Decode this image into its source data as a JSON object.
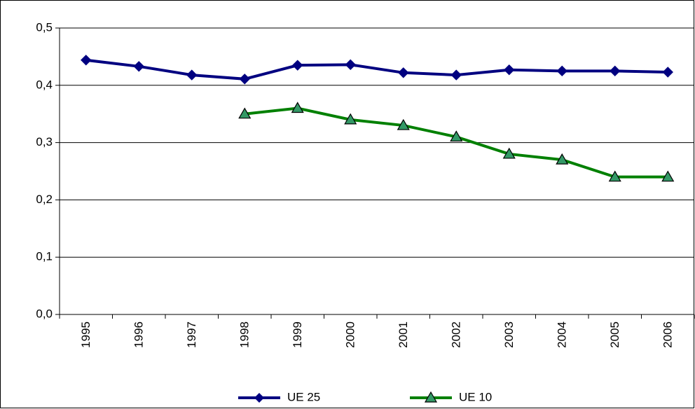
{
  "chart_data": {
    "type": "line",
    "categories": [
      "1995",
      "1996",
      "1997",
      "1998",
      "1999",
      "2000",
      "2001",
      "2002",
      "2003",
      "2004",
      "2005",
      "2006"
    ],
    "series": [
      {
        "name": "UE 25",
        "color": "#000080",
        "marker": "diamond",
        "values": [
          0.444,
          0.433,
          0.418,
          0.411,
          0.435,
          0.436,
          0.422,
          0.418,
          0.427,
          0.425,
          0.425,
          0.423
        ]
      },
      {
        "name": "UE 10",
        "color": "#008000",
        "marker": "triangle",
        "values": [
          null,
          null,
          null,
          0.35,
          0.36,
          0.34,
          0.33,
          0.31,
          0.28,
          0.27,
          0.24,
          0.24
        ]
      }
    ],
    "ylim": [
      0,
      0.5
    ],
    "yticks": [
      {
        "value": 0,
        "label": "0,0"
      },
      {
        "value": 0.1,
        "label": "0,1"
      },
      {
        "value": 0.2,
        "label": "0,2"
      },
      {
        "value": 0.3,
        "label": "0,3"
      },
      {
        "value": 0.4,
        "label": "0,4"
      },
      {
        "value": 0.5,
        "label": "0,5"
      }
    ],
    "grid": true,
    "legend": "bottom"
  }
}
